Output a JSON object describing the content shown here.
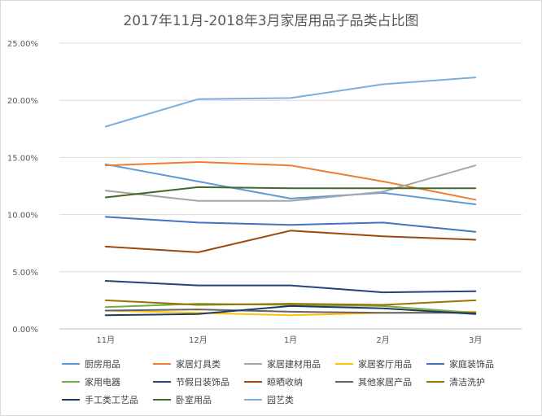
{
  "chart_data": {
    "type": "line",
    "title": "2017年11月-2018年3月家居用品子品类占比图",
    "xlabel": "",
    "ylabel": "",
    "categories": [
      "11月",
      "12月",
      "1月",
      "2月",
      "3月"
    ],
    "ylim": [
      0,
      0.25
    ],
    "yticks": [
      "0.00%",
      "5.00%",
      "10.00%",
      "15.00%",
      "20.00%",
      "25.00%"
    ],
    "grid": true,
    "legend_position": "bottom",
    "series": [
      {
        "name": "厨房用品",
        "color": "#5b9bd5",
        "values": [
          0.144,
          0.129,
          0.114,
          0.119,
          0.109
        ]
      },
      {
        "name": "家居灯具类",
        "color": "#ed7d31",
        "values": [
          0.143,
          0.146,
          0.143,
          0.129,
          0.113
        ]
      },
      {
        "name": "家居建材用品",
        "color": "#a5a5a5",
        "values": [
          0.121,
          0.112,
          0.112,
          0.12,
          0.143
        ]
      },
      {
        "name": "家居客厅用品",
        "color": "#ffc000",
        "values": [
          0.016,
          0.014,
          0.012,
          0.014,
          0.015
        ]
      },
      {
        "name": "家庭装饰品",
        "color": "#4472c4",
        "values": [
          0.098,
          0.093,
          0.091,
          0.093,
          0.085
        ]
      },
      {
        "name": "家用电器",
        "color": "#70ad47",
        "values": [
          0.019,
          0.022,
          0.021,
          0.02,
          0.014
        ]
      },
      {
        "name": "节假日装饰品",
        "color": "#264478",
        "values": [
          0.042,
          0.038,
          0.038,
          0.032,
          0.033
        ]
      },
      {
        "name": "晾晒收纳",
        "color": "#9e480e",
        "values": [
          0.072,
          0.067,
          0.086,
          0.081,
          0.078
        ]
      },
      {
        "name": "其他家居产品",
        "color": "#636363",
        "values": [
          0.016,
          0.017,
          0.015,
          0.014,
          0.014
        ]
      },
      {
        "name": "清洁洗护",
        "color": "#997300",
        "values": [
          0.025,
          0.021,
          0.022,
          0.021,
          0.025
        ]
      },
      {
        "name": "手工类工艺品",
        "color": "#1f3864",
        "values": [
          0.012,
          0.013,
          0.02,
          0.018,
          0.013
        ]
      },
      {
        "name": "卧室用品",
        "color": "#43682b",
        "values": [
          0.115,
          0.124,
          0.123,
          0.123,
          0.123
        ]
      },
      {
        "name": "园艺类",
        "color": "#7cafdd",
        "values": [
          0.177,
          0.201,
          0.202,
          0.214,
          0.22
        ]
      }
    ]
  }
}
